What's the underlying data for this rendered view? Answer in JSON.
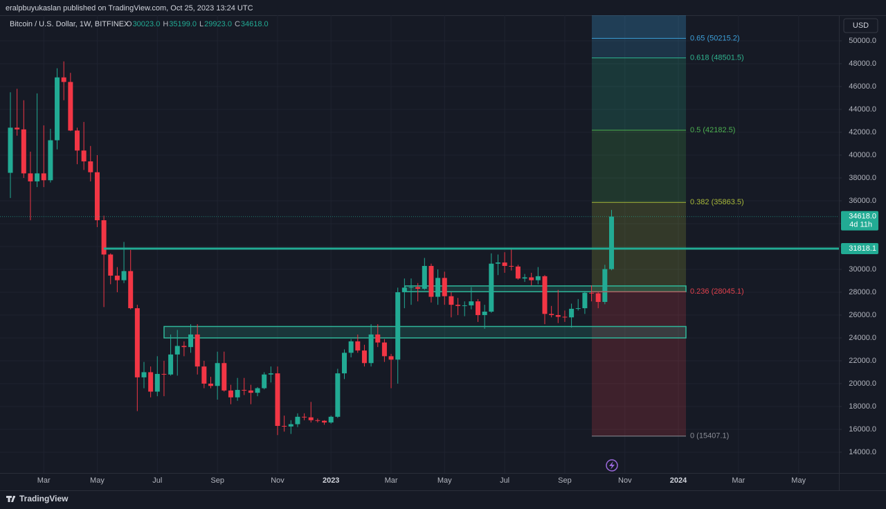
{
  "header": {
    "published": "eralpbuyukaslan published on TradingView.com, Oct 25, 2023 13:24 UTC",
    "symbol": "Bitcoin / U.S. Dollar, 1W, BITFINEX",
    "ohlc": [
      {
        "key": "O",
        "value": "30023.0"
      },
      {
        "key": "H",
        "value": "35199.0"
      },
      {
        "key": "L",
        "value": "29923.0"
      },
      {
        "key": "C",
        "value": "34618.0"
      }
    ],
    "currency": "USD",
    "last_price_label": "34618.0",
    "countdown": "4d 11h",
    "brand": "TradingView"
  },
  "chart_data": {
    "type": "candlestick",
    "up_color": "#22ab94",
    "down_color": "#f23645",
    "grid": true,
    "categories": [
      null,
      null,
      null,
      null,
      null,
      "Mar",
      null,
      null,
      null,
      null,
      null,
      null,
      null,
      "May",
      null,
      null,
      null,
      null,
      null,
      null,
      null,
      null,
      "Jul",
      null,
      null,
      null,
      null,
      null,
      null,
      null,
      null,
      "Sep",
      null,
      null,
      null,
      null,
      null,
      null,
      null,
      null,
      "Nov",
      null,
      null,
      null,
      null,
      null,
      null,
      null,
      "2023",
      null,
      null,
      null,
      null,
      null,
      null,
      null,
      null,
      "Mar",
      null,
      null,
      null,
      null,
      null,
      null,
      null,
      "May",
      null,
      null,
      null,
      null,
      null,
      null,
      null,
      null,
      "Jul",
      null,
      null,
      null,
      null,
      null,
      null,
      null,
      null,
      "Sep",
      null,
      null,
      null,
      null,
      null,
      null,
      null,
      null,
      "Nov",
      null,
      null,
      null,
      null,
      null,
      null,
      null,
      "2024",
      null,
      null,
      null,
      null,
      null,
      null,
      null,
      null,
      "Mar",
      null,
      null,
      null,
      null,
      null,
      null,
      null,
      null,
      "May",
      null,
      null,
      null,
      null,
      null,
      null
    ],
    "open": [
      38450,
      42400,
      42250,
      38400,
      37700,
      38400,
      37800,
      41300,
      46800,
      46400,
      42150,
      40400,
      39450,
      38500,
      34300,
      31300,
      29450,
      29050,
      29850,
      26600,
      20550,
      21000,
      19300,
      20850,
      20800,
      22550,
      23300,
      23200,
      24300,
      21500,
      20000,
      19800,
      21800,
      19400,
      18800,
      19450,
      19400,
      19200,
      19600,
      20800,
      20900,
      16300,
      16250,
      16450,
      17100,
      17050,
      16800,
      16750,
      16600,
      17100,
      20900,
      22700,
      23700,
      22900,
      21800,
      24300,
      23600,
      22400,
      22100,
      28000,
      28400,
      28450,
      28300,
      30300,
      27600,
      29250,
      27650,
      26900,
      26800,
      26850,
      27200,
      26000,
      26300,
      30500,
      30600,
      30300,
      30250,
      29200,
      29300,
      29050,
      29400,
      26100,
      26000,
      25850,
      25800,
      26550,
      26600,
      27950,
      27900,
      27150,
      30023,
      null,
      null,
      null,
      null,
      null,
      null,
      null,
      null,
      null,
      null,
      null,
      null,
      null,
      null,
      null,
      null,
      null,
      null,
      null,
      null,
      null,
      null,
      null,
      null,
      null,
      null,
      null,
      null,
      null,
      null,
      null,
      null,
      null,
      null
    ],
    "high": [
      45500,
      45800,
      44800,
      40300,
      45400,
      42600,
      42300,
      47600,
      48200,
      47200,
      42400,
      42900,
      40800,
      40000,
      34700,
      31400,
      30200,
      32400,
      31700,
      26900,
      21900,
      21500,
      22400,
      22000,
      24300,
      24700,
      23700,
      25200,
      25200,
      22000,
      20600,
      22800,
      22800,
      19900,
      20500,
      20500,
      19900,
      19700,
      21000,
      21500,
      21500,
      17200,
      16800,
      17400,
      17400,
      18400,
      16950,
      16800,
      17200,
      21300,
      23000,
      23900,
      24300,
      23400,
      25200,
      25200,
      23900,
      22600,
      28400,
      29200,
      29200,
      28800,
      31000,
      30500,
      30000,
      29800,
      28000,
      27500,
      27200,
      28450,
      27400,
      26900,
      31400,
      31300,
      31500,
      31800,
      30400,
      29600,
      29700,
      30200,
      29500,
      26800,
      28200,
      26400,
      27000,
      27400,
      28100,
      28600,
      28000,
      30400,
      35199,
      null,
      null,
      null,
      null,
      null,
      null,
      null,
      null,
      null,
      null,
      null,
      null,
      null,
      null,
      null,
      null,
      null,
      null,
      null,
      null,
      null,
      null,
      null,
      null,
      null,
      null,
      null,
      null,
      null,
      null,
      null,
      null,
      null,
      null
    ],
    "low": [
      36250,
      41700,
      38000,
      34300,
      37200,
      37200,
      37600,
      40500,
      44800,
      42100,
      39200,
      38700,
      37700,
      33700,
      26700,
      28700,
      28000,
      28800,
      26500,
      17600,
      19600,
      18800,
      18900,
      18900,
      20700,
      20700,
      22400,
      22700,
      20800,
      19600,
      19600,
      18600,
      19300,
      18200,
      18500,
      19000,
      18200,
      18900,
      19500,
      20100,
      15500,
      15800,
      15600,
      16200,
      16800,
      16600,
      16600,
      16400,
      16500,
      17000,
      20400,
      22300,
      22700,
      21500,
      21500,
      23200,
      21900,
      19600,
      20000,
      26600,
      26900,
      27200,
      28200,
      27100,
      26900,
      26900,
      25800,
      26000,
      25900,
      26500,
      25400,
      24800,
      26200,
      29500,
      29700,
      29900,
      29100,
      28900,
      28600,
      28700,
      25200,
      25800,
      25300,
      25400,
      24900,
      26400,
      26100,
      27200,
      26600,
      26950,
      29923,
      null,
      null,
      null,
      null,
      null,
      null,
      null,
      null,
      null,
      null,
      null,
      null,
      null,
      null,
      null,
      null,
      null,
      null,
      null,
      null,
      null,
      null,
      null,
      null,
      null,
      null,
      null,
      null,
      null,
      null,
      null,
      null,
      null,
      null
    ],
    "close": [
      42400,
      42250,
      38400,
      37700,
      38400,
      37800,
      41300,
      46800,
      46400,
      42150,
      40400,
      39450,
      38500,
      34300,
      31300,
      29450,
      29050,
      29850,
      26600,
      20550,
      21000,
      19300,
      20850,
      20800,
      22550,
      23300,
      23200,
      24300,
      21500,
      20000,
      19800,
      21800,
      19400,
      18800,
      19450,
      19400,
      19200,
      19600,
      20800,
      20900,
      16300,
      16250,
      16450,
      17100,
      17050,
      16800,
      16750,
      16600,
      17100,
      20900,
      22700,
      23700,
      22900,
      21800,
      24300,
      23600,
      22400,
      22100,
      28000,
      28400,
      28450,
      28300,
      30300,
      27600,
      29250,
      27650,
      26900,
      26800,
      26850,
      27200,
      26000,
      26300,
      30500,
      30600,
      30300,
      30250,
      29200,
      29300,
      29050,
      29400,
      26100,
      26000,
      25850,
      25800,
      26550,
      26600,
      27950,
      27900,
      27150,
      30023,
      34618,
      null,
      null,
      null,
      null,
      null,
      null,
      null,
      null,
      null,
      null,
      null,
      null,
      null,
      null,
      null,
      null,
      null,
      null,
      null,
      null,
      null,
      null,
      null,
      null,
      null,
      null,
      null,
      null,
      null,
      null,
      null,
      null,
      null,
      null
    ],
    "ylim": [
      12180,
      52240
    ],
    "yticks": [
      {
        "value": 14000,
        "label": "14000.0"
      },
      {
        "value": 16000,
        "label": "16000.0"
      },
      {
        "value": 18000,
        "label": "18000.0"
      },
      {
        "value": 20000,
        "label": "20000.0"
      },
      {
        "value": 22000,
        "label": "22000.0"
      },
      {
        "value": 24000,
        "label": "24000.0"
      },
      {
        "value": 26000,
        "label": "26000.0"
      },
      {
        "value": 28000,
        "label": "28000.0"
      },
      {
        "value": 30000,
        "label": "30000.0"
      },
      {
        "value": 32000,
        "label": "32000.0"
      },
      {
        "value": 34000,
        "label": "34000.0"
      },
      {
        "value": 36000,
        "label": "36000.0"
      },
      {
        "value": 38000,
        "label": "38000.0"
      },
      {
        "value": 40000,
        "label": "40000.0"
      },
      {
        "value": 42000,
        "label": "42000.0"
      },
      {
        "value": 44000,
        "label": "44000.0"
      },
      {
        "value": 46000,
        "label": "46000.0"
      },
      {
        "value": 48000,
        "label": "48000.0"
      },
      {
        "value": 50000,
        "label": "50000.0"
      }
    ],
    "level_line": {
      "value": 31818.1,
      "label": "31818.1",
      "color": "#22ab94"
    },
    "zones": [
      {
        "low": 24000,
        "high": 25000
      },
      {
        "low": 28045.1,
        "high": 28550
      }
    ],
    "zone_color": "#2fb79a",
    "fib_levels": [
      {
        "value": 50215.2,
        "label": "0.65 (50215.2)",
        "color": "#3d9fd8"
      },
      {
        "value": 48501.5,
        "label": "0.618 (48501.5)",
        "color": "#2fb38e"
      },
      {
        "value": 42182.5,
        "label": "0.5 (42182.5)",
        "color": "#4caf50"
      },
      {
        "value": 35863.5,
        "label": "0.382 (35863.5)",
        "color": "#a8b83a"
      },
      {
        "value": 28045.1,
        "label": "0.236 (28045.1)",
        "color": "#e0404c"
      },
      {
        "value": 15407.1,
        "label": "0 (15407.1)",
        "color": "#8a8d96"
      }
    ]
  }
}
